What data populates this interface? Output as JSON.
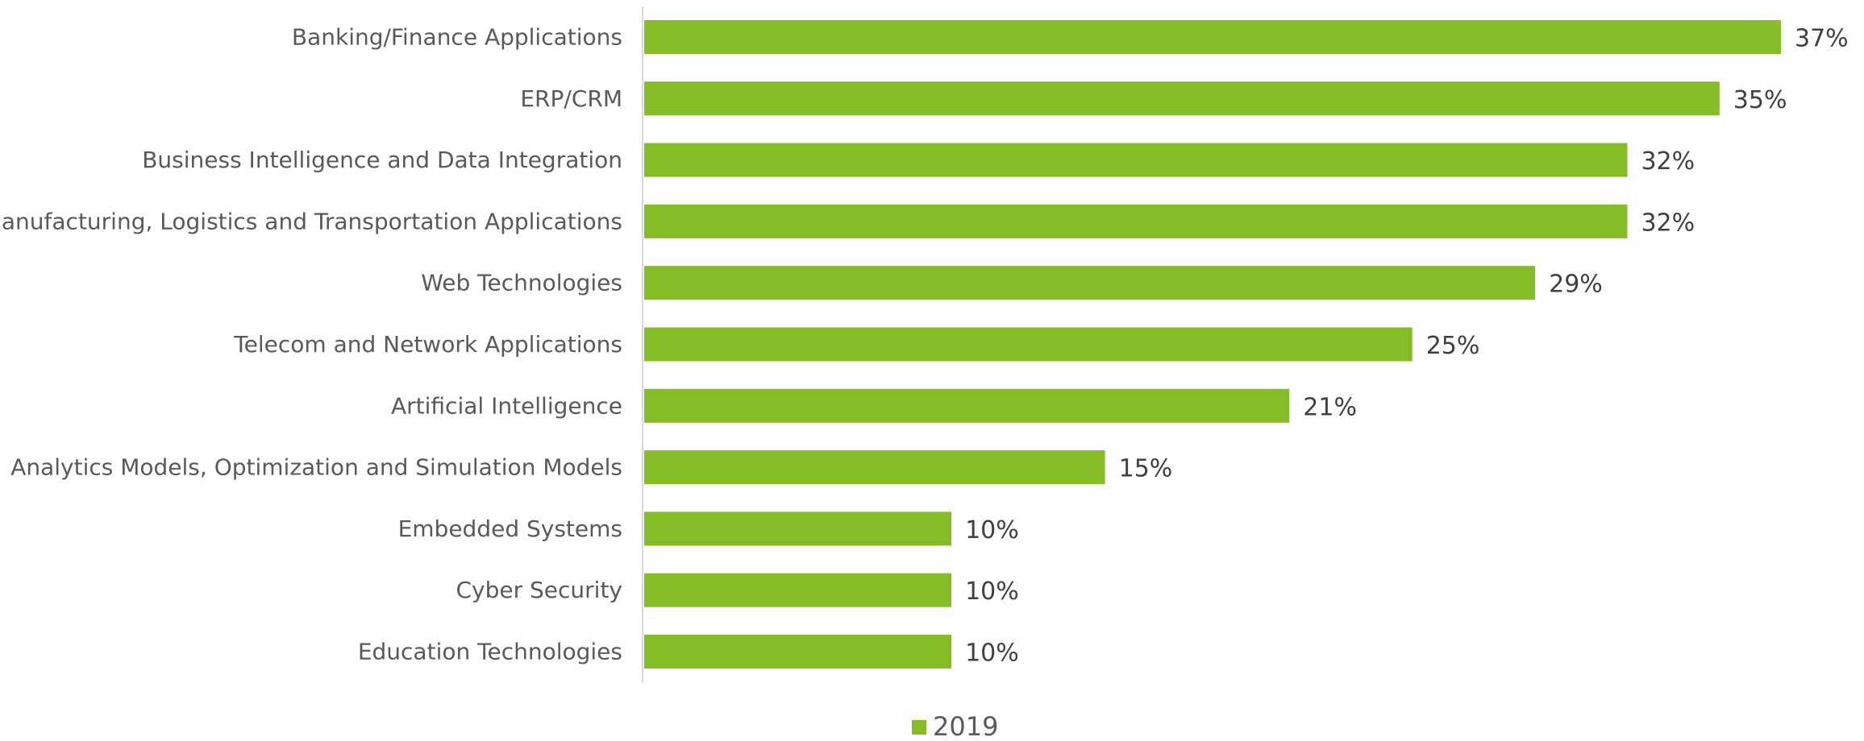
{
  "chart_data": {
    "type": "bar",
    "orientation": "horizontal",
    "categories": [
      "Banking/Finance Applications",
      "ERP/CRM",
      "Business Intelligence and Data Integration",
      "Manufacturing, Logistics and Transportation Applications",
      "Web Technologies",
      "Telecom and Network Applications",
      "Artificial Intelligence",
      "Analytics Models, Optimization and Simulation Models",
      "Embedded Systems",
      "Cyber Security",
      "Education Technologies"
    ],
    "series": [
      {
        "name": "2019",
        "color": "#86bc25",
        "values": [
          37,
          35,
          32,
          32,
          29,
          25,
          21,
          15,
          10,
          10,
          10
        ],
        "value_labels": [
          "37%",
          "35%",
          "32%",
          "32%",
          "29%",
          "25%",
          "21%",
          "15%",
          "10%",
          "10%",
          "10%"
        ]
      }
    ],
    "title": "",
    "xlabel": "",
    "ylabel": "",
    "xlim": [
      0,
      37
    ],
    "grid": false,
    "legend_position": "bottom"
  }
}
